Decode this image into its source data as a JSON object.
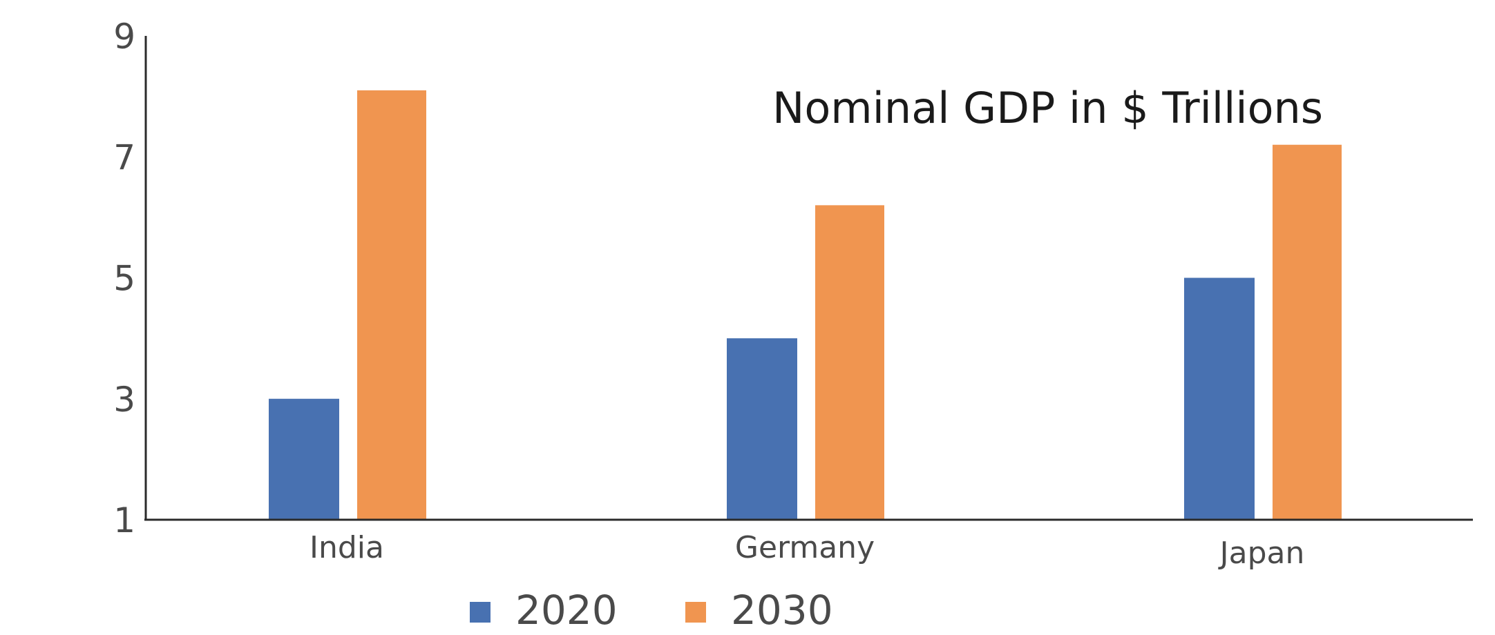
{
  "chart_data": {
    "type": "bar",
    "title": "Nominal GDP in $ Trillions",
    "xlabel": "",
    "ylabel": "",
    "categories": [
      "India",
      "Germany",
      "Japan"
    ],
    "series": [
      {
        "name": "2020",
        "values": [
          3,
          4,
          5
        ],
        "color": "#4871b1"
      },
      {
        "name": "2030",
        "values": [
          8.1,
          6.2,
          7.2
        ],
        "color": "#f09550"
      }
    ],
    "ylim": [
      1,
      9
    ],
    "yticks": [
      "1",
      "3",
      "5",
      "7",
      "9"
    ],
    "grid": false,
    "legend_position": "bottom"
  }
}
